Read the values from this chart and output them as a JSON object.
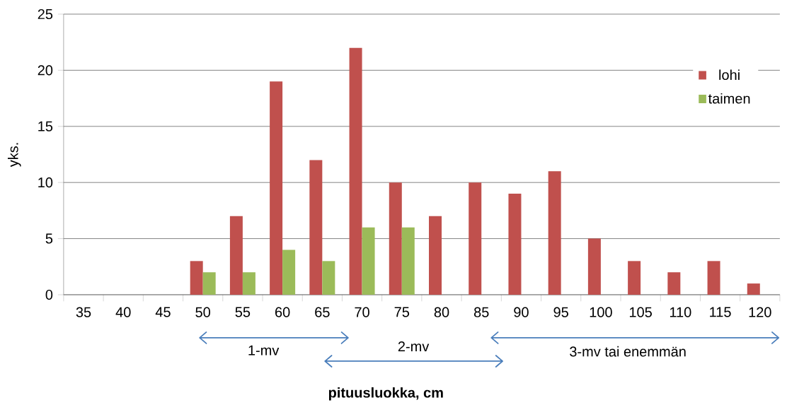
{
  "chart_data": {
    "type": "bar",
    "xlabel": "pituusluokka, cm",
    "ylabel": "yks.",
    "categories": [
      "35",
      "40",
      "45",
      "50",
      "55",
      "60",
      "65",
      "70",
      "75",
      "80",
      "85",
      "90",
      "95",
      "100",
      "105",
      "110",
      "115",
      "120"
    ],
    "series": [
      {
        "name": "lohi",
        "color": "#c0504d",
        "values": [
          null,
          null,
          null,
          3,
          7,
          19,
          12,
          22,
          10,
          7,
          10,
          9,
          11,
          5,
          3,
          2,
          3,
          1
        ]
      },
      {
        "name": "taimen",
        "color": "#9bbb59",
        "values": [
          null,
          null,
          null,
          2,
          2,
          4,
          3,
          6,
          6,
          null,
          null,
          null,
          null,
          null,
          null,
          null,
          null,
          null
        ]
      }
    ],
    "ylim": [
      0,
      25
    ],
    "yticks": [
      0,
      5,
      10,
      15,
      20,
      25
    ],
    "grid": "y",
    "legend": "top right",
    "annotations": [
      "1-mv",
      "2-mv",
      "3-mv tai enemmän"
    ]
  }
}
